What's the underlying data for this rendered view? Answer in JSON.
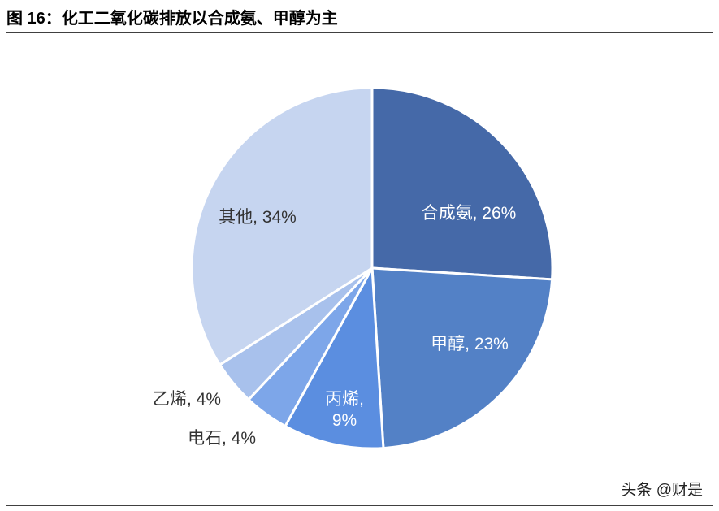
{
  "chart_data": {
    "type": "pie",
    "title": "图 16：化工二氧化碳排放以合成氨、甲醇为主",
    "values": [
      26,
      23,
      9,
      4,
      4,
      34
    ],
    "value_labels": [
      "合成氨, 26%",
      "甲醇, 23%",
      "丙烯,\n9%",
      "电石, 4%",
      "乙烯, 4%",
      "其他, 34%"
    ],
    "colors": [
      "#4569a8",
      "#5381c6",
      "#5b8ee0",
      "#7da6e9",
      "#a8c1ec",
      "#c6d5f0"
    ],
    "watermark": "头条 @财是"
  }
}
